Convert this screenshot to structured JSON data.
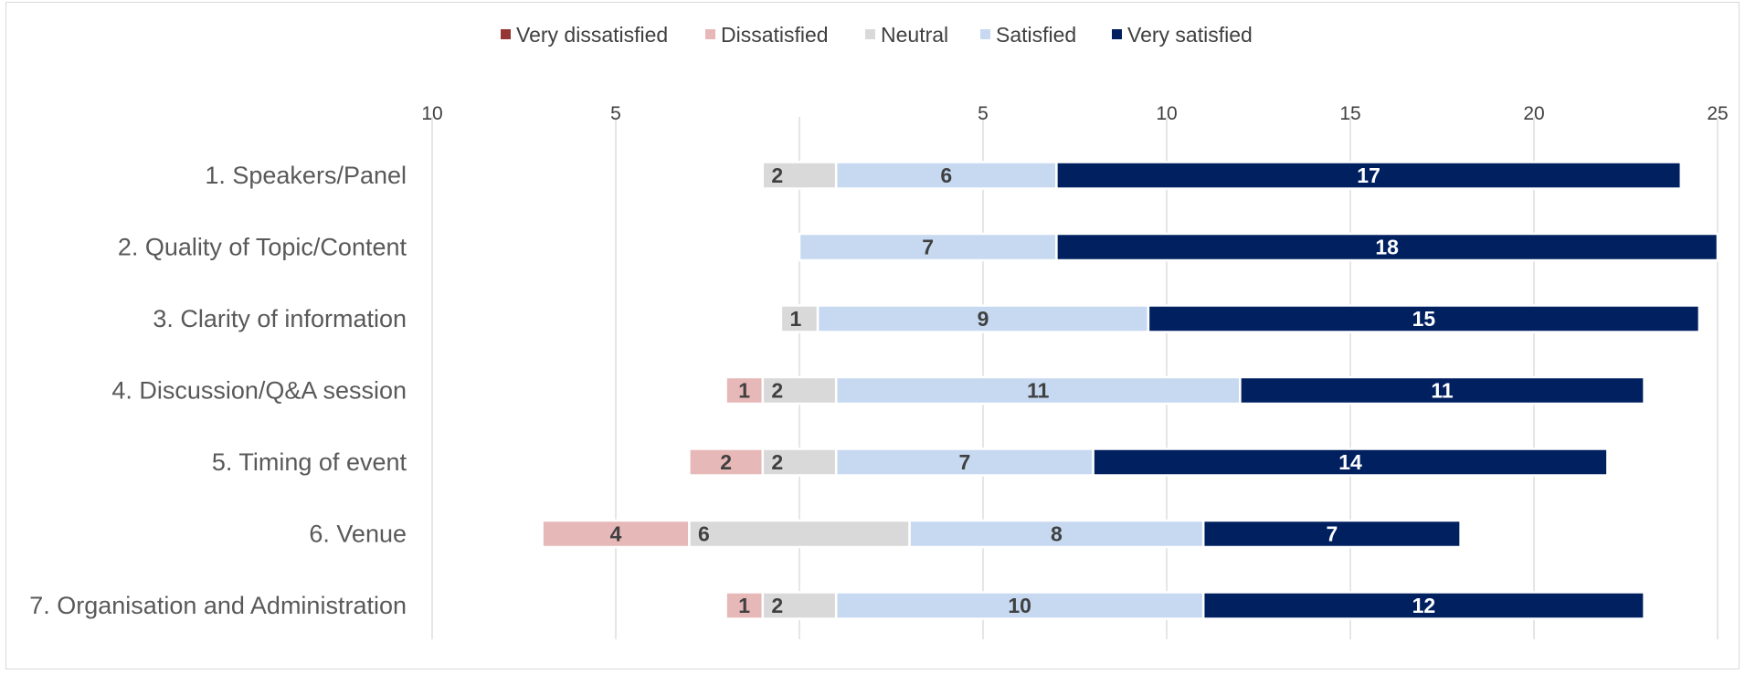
{
  "chart_data": {
    "type": "bar",
    "orientation": "horizontal",
    "stacked": "diverging",
    "legend_position": "top",
    "grid": true,
    "xlim": [
      -10,
      25
    ],
    "x_ticks": [
      {
        "value": -10,
        "label": "10"
      },
      {
        "value": -5,
        "label": "5"
      },
      {
        "value": 5,
        "label": "5"
      },
      {
        "value": 10,
        "label": "10"
      },
      {
        "value": 15,
        "label": "15"
      },
      {
        "value": 20,
        "label": "20"
      },
      {
        "value": 25,
        "label": "25"
      }
    ],
    "categories": [
      "1. Speakers/Panel",
      "2. Quality of Topic/Content",
      "3. Clarity of information",
      "4. Discussion/Q&A session",
      "5. Timing of event",
      "6. Venue",
      "7. Organisation and Administration"
    ],
    "series": [
      {
        "name": "Very dissatisfied",
        "color": "#943634",
        "label_color": "#ffffff",
        "side": "negative",
        "values": [
          0,
          0,
          0,
          0,
          0,
          0,
          0
        ]
      },
      {
        "name": "Dissatisfied",
        "color": "#e6b8b7",
        "label_color": "#404040",
        "side": "negative",
        "values": [
          0,
          0,
          0,
          1,
          2,
          4,
          1
        ]
      },
      {
        "name": "Neutral",
        "color": "#d9d9d9",
        "label_color": "#404040",
        "side": "center",
        "values": [
          2,
          0,
          1,
          2,
          2,
          6,
          2
        ]
      },
      {
        "name": "Satisfied",
        "color": "#c6d9f1",
        "label_color": "#404040",
        "side": "positive",
        "values": [
          6,
          7,
          9,
          11,
          7,
          8,
          10
        ]
      },
      {
        "name": "Very satisfied",
        "color": "#002060",
        "label_color": "#ffffff",
        "side": "positive",
        "values": [
          17,
          18,
          15,
          11,
          14,
          7,
          12
        ]
      }
    ]
  }
}
